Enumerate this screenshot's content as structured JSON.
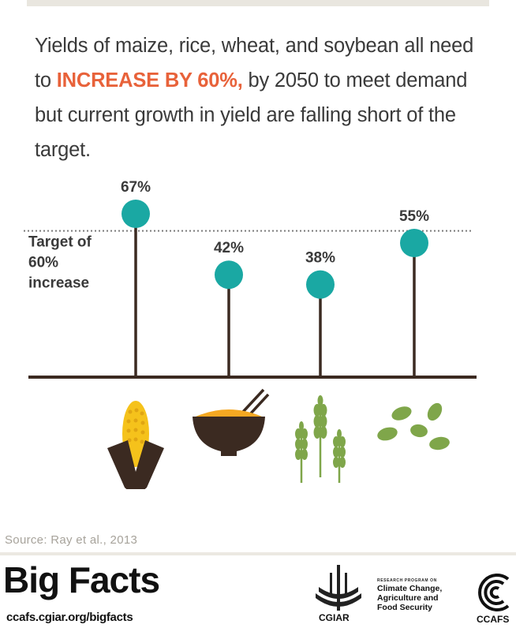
{
  "headline": {
    "part1": "Yields of maize, rice, wheat, and soybean all need to ",
    "emphasis": "INCREASE BY 60%,",
    "part2": " by 2050 to meet demand but current growth in yield are falling short of the target."
  },
  "chart_data": {
    "type": "lollipop",
    "categories": [
      "maize",
      "rice",
      "wheat",
      "soybean"
    ],
    "values": [
      67,
      42,
      38,
      55
    ],
    "value_labels": [
      "67%",
      "42%",
      "38%",
      "55%"
    ],
    "target_value": 60,
    "target_label": [
      "Target of",
      "60%",
      "increase"
    ],
    "colors": {
      "dot": "#1aa8a3",
      "stem": "#3b2a21",
      "target_line": "#7a7a7a",
      "label": "#3a3a3a"
    }
  },
  "icons": [
    "corn-icon",
    "rice-bowl-icon",
    "wheat-icon",
    "soybean-icon"
  ],
  "source": "Source: Ray et al., 2013",
  "footer": {
    "brand": "Big Facts",
    "url": "ccafs.cgiar.org/bigfacts",
    "cgiar_label": "CGIAR",
    "program_small": "RESEARCH PROGRAM ON",
    "program_lines": [
      "Climate Change,",
      "Agriculture and",
      "Food Security"
    ],
    "ccafs_label": "CCAFS"
  }
}
